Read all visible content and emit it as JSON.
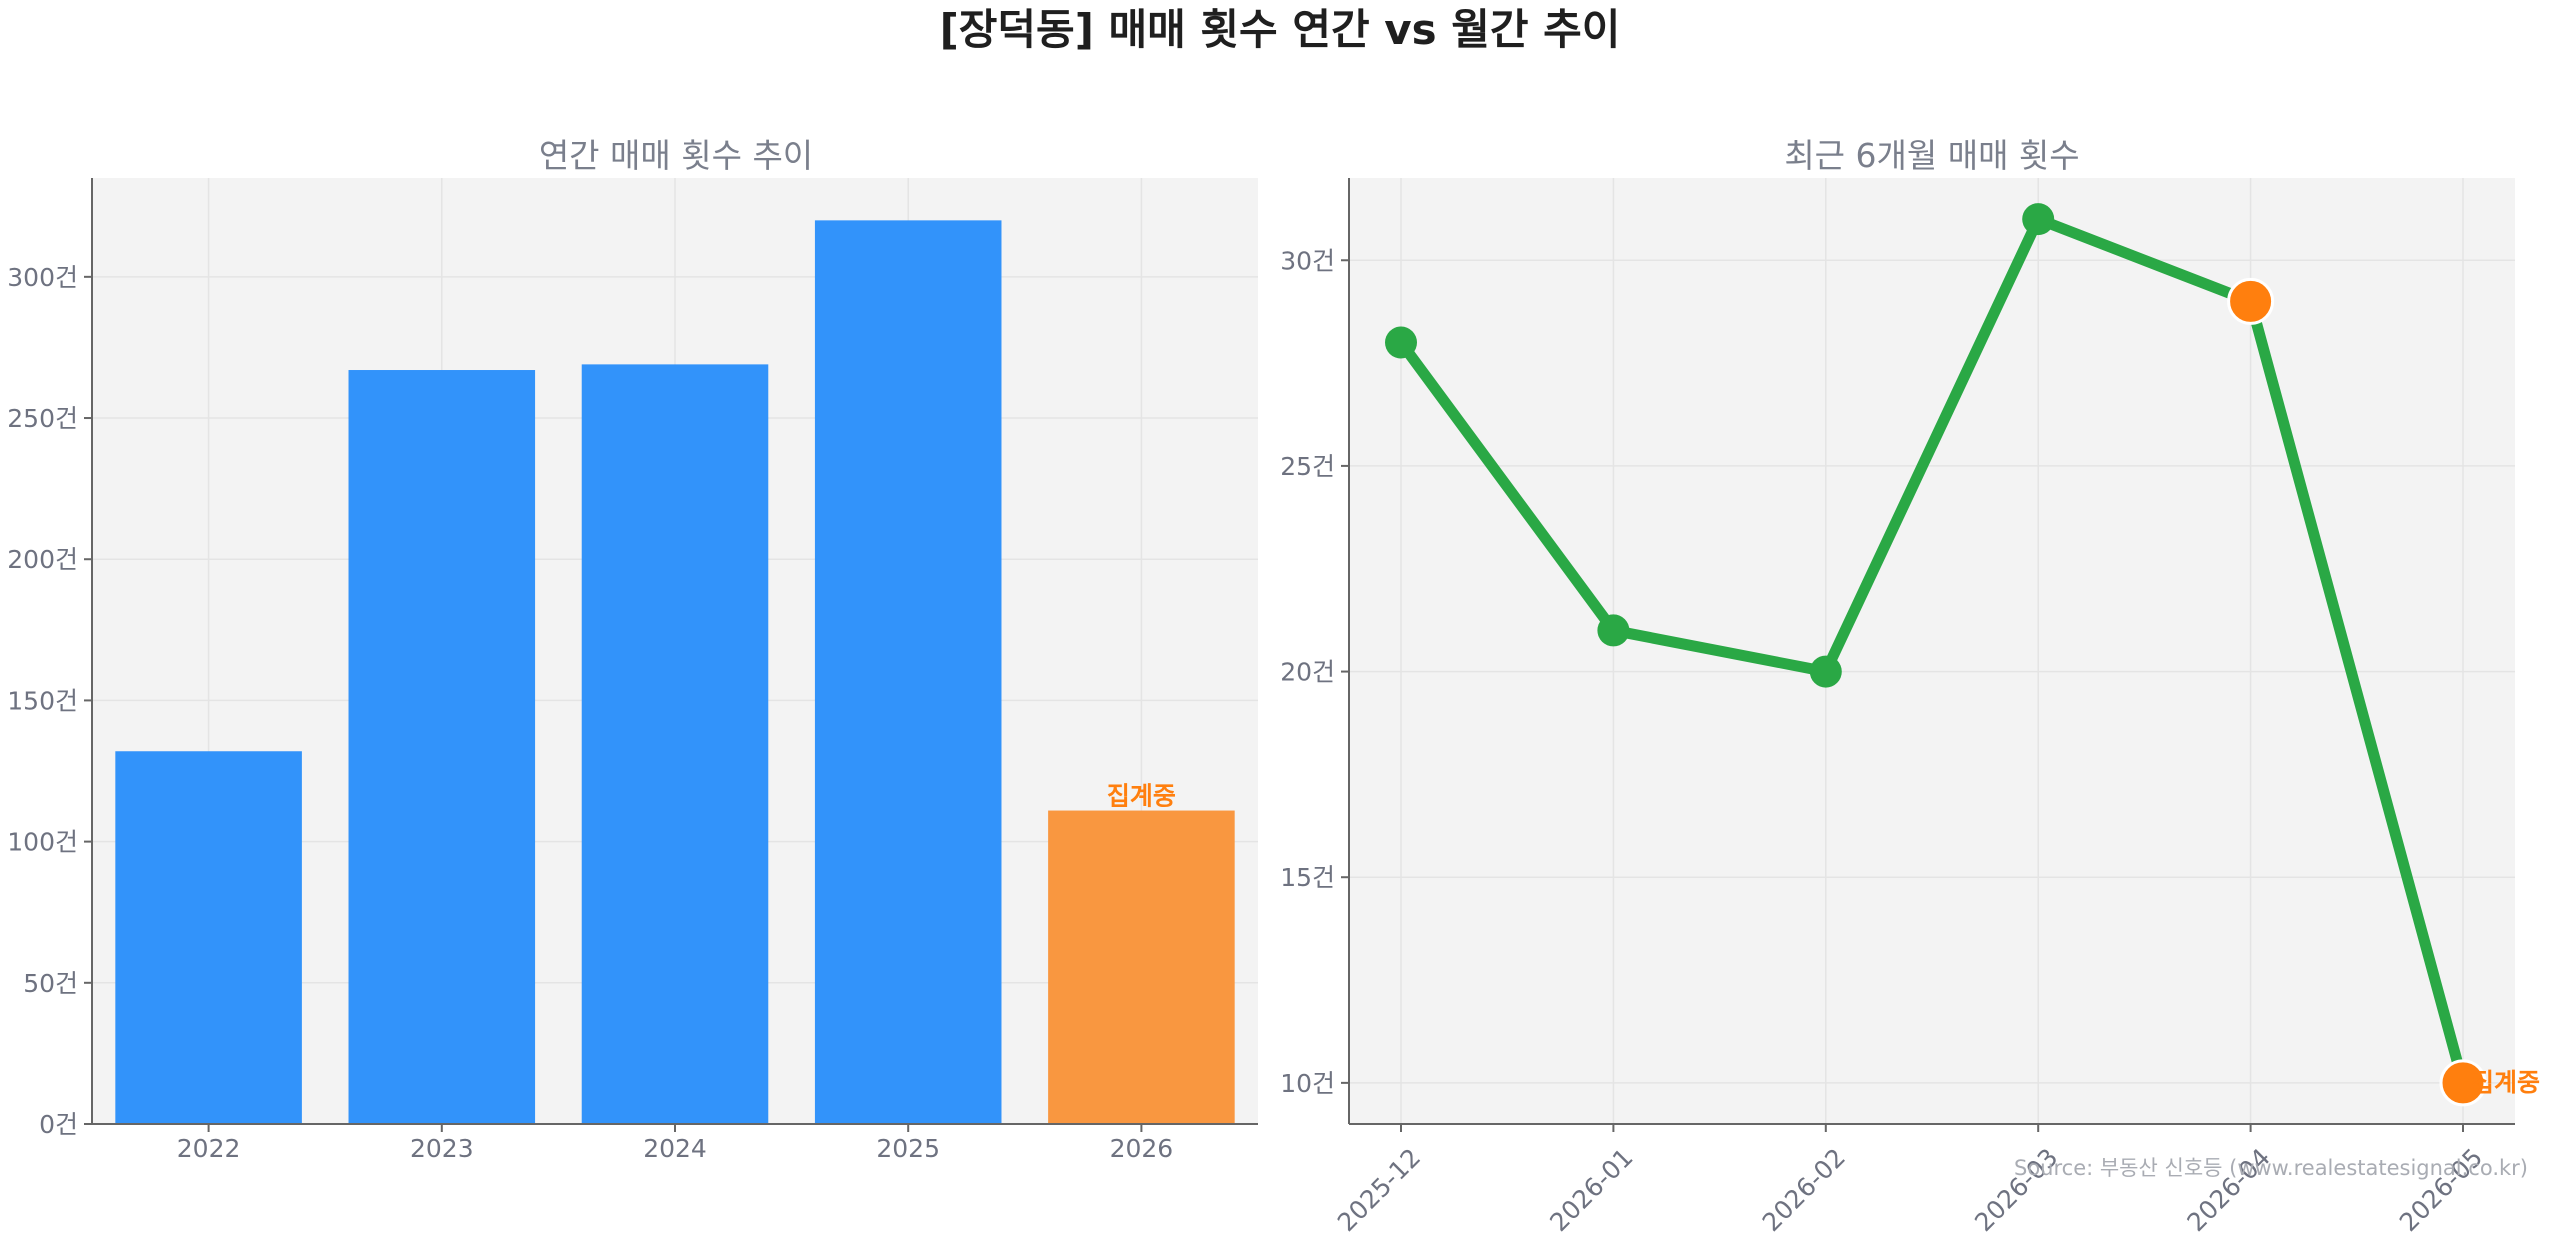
{
  "title": "[장덕동] 매매 횟수 연간 vs 월간 추이",
  "source": "Source: 부동산 신호등 (www.realestatesignal.co.kr)",
  "colors": {
    "bar": "#3293fa",
    "highlight_bar": "#f99740",
    "line": "#2aa845",
    "highlight_marker": "#ff7f0e",
    "note": "#ff7f0e",
    "plot_bg": "#f3f3f3"
  },
  "chart_data": [
    {
      "type": "bar",
      "title": "연간 매매 횟수 추이",
      "categories": [
        "2022",
        "2023",
        "2024",
        "2025",
        "2026"
      ],
      "values": [
        132,
        267,
        269,
        320,
        111
      ],
      "highlight_index": 4,
      "annotation": "집계중",
      "ylim": [
        0,
        335
      ],
      "yticks": [
        0,
        50,
        100,
        150,
        200,
        250,
        300
      ],
      "ytick_suffix": "건",
      "grid": true
    },
    {
      "type": "line",
      "title": "최근 6개월 매매 횟수",
      "categories": [
        "2025-12",
        "2026-01",
        "2026-02",
        "2026-03",
        "2026-04",
        "2026-05"
      ],
      "values": [
        28,
        21,
        20,
        31,
        29,
        10
      ],
      "highlight_indices": [
        4,
        5
      ],
      "annotation": "집계중",
      "annotation_index": 5,
      "ylim": [
        9,
        32
      ],
      "yticks": [
        10,
        15,
        20,
        25,
        30
      ],
      "ytick_suffix": "건",
      "grid": true
    }
  ]
}
